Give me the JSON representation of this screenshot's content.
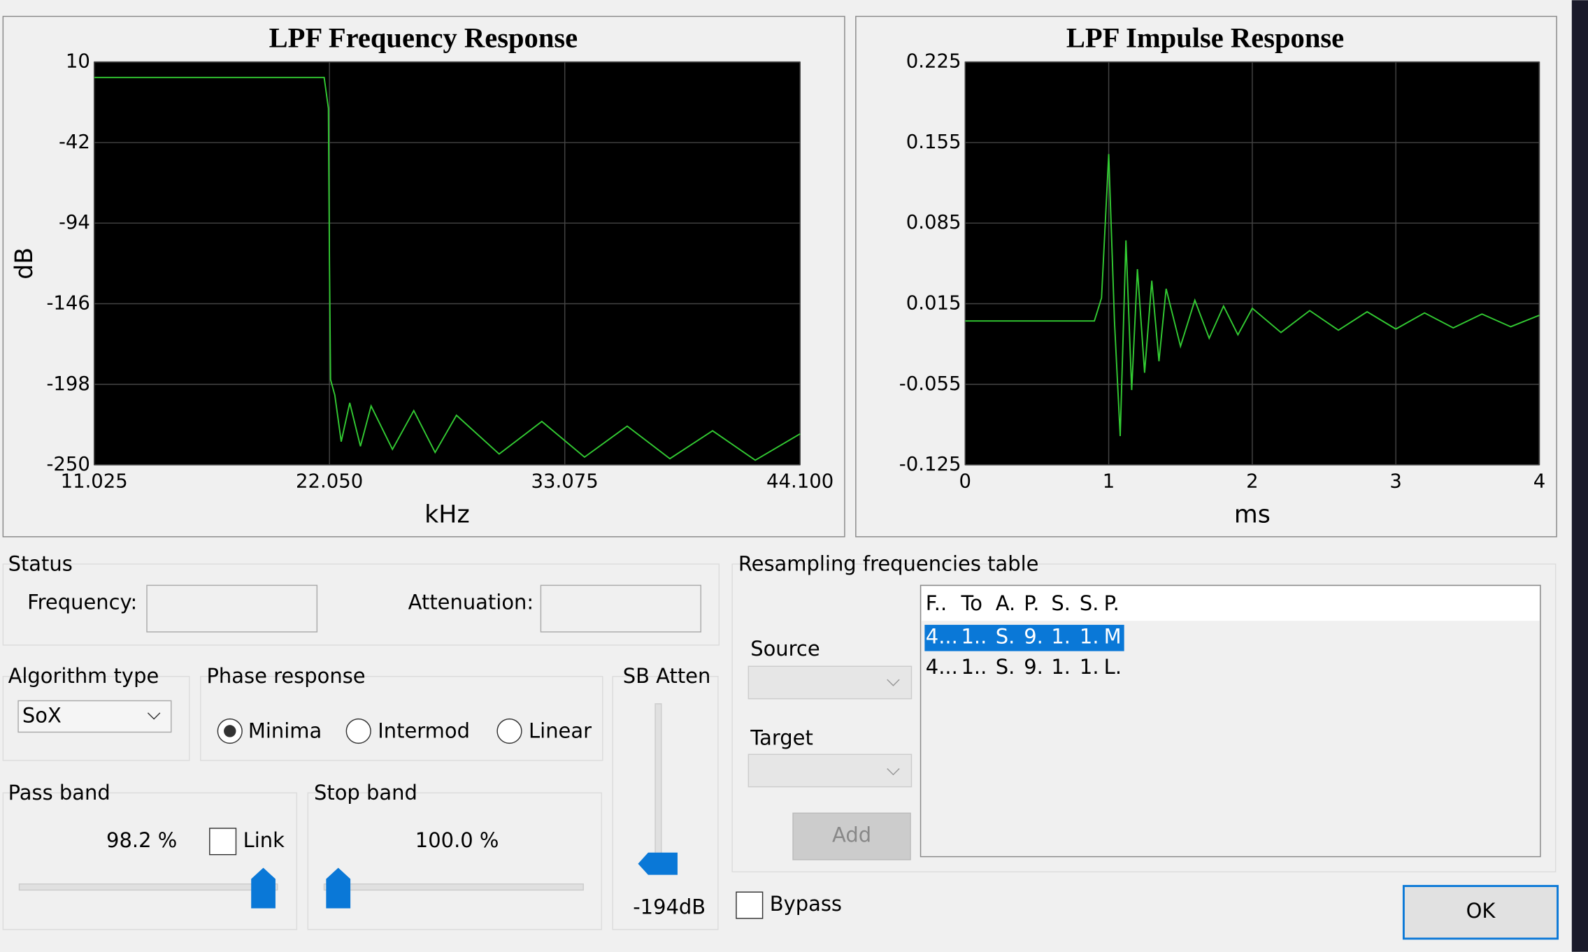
{
  "chart_data": [
    {
      "type": "line",
      "title": "LPF Frequency Response",
      "xlabel": "kHz",
      "ylabel": "dB",
      "color": "#33cc33",
      "grid": true,
      "x": [
        11.025,
        21.8,
        22.0,
        22.05,
        22.1,
        22.3,
        22.6,
        23.0,
        23.5,
        24.0,
        25.0,
        26.0,
        27.0,
        28.0,
        30.0,
        32.0,
        34.0,
        36.0,
        38.0,
        40.0,
        42.0,
        44.1
      ],
      "values": [
        0,
        0,
        -20,
        -120,
        -195,
        -205,
        -235,
        -210,
        -238,
        -212,
        -240,
        -215,
        -242,
        -218,
        -243,
        -222,
        -245,
        -225,
        -246,
        -228,
        -247,
        -230
      ],
      "xlim": [
        11.025,
        44.1
      ],
      "ylim": [
        -250,
        10
      ],
      "xticks": [
        11.025,
        {
          "value": 22.05,
          "label": "22.050"
        },
        33.075,
        {
          "value": 44.1,
          "label": "44.100"
        }
      ],
      "yticks": [
        10,
        -42,
        -94,
        -146,
        -198,
        -250
      ]
    },
    {
      "type": "line",
      "title": "LPF Impulse Response",
      "xlabel": "ms",
      "color": "#33cc33",
      "grid": true,
      "x": [
        0,
        0.9,
        0.95,
        1.0,
        1.04,
        1.08,
        1.12,
        1.16,
        1.2,
        1.25,
        1.3,
        1.35,
        1.4,
        1.5,
        1.6,
        1.7,
        1.8,
        1.9,
        2.0,
        2.2,
        2.4,
        2.6,
        2.8,
        3.0,
        3.2,
        3.4,
        3.6,
        3.8,
        4.0
      ],
      "values": [
        0,
        0,
        0.02,
        0.145,
        0.0,
        -0.1,
        0.07,
        -0.06,
        0.045,
        -0.045,
        0.035,
        -0.035,
        0.028,
        -0.022,
        0.018,
        -0.015,
        0.013,
        -0.012,
        0.011,
        -0.01,
        0.009,
        -0.008,
        0.008,
        -0.007,
        0.007,
        -0.006,
        0.006,
        -0.005,
        0.005
      ],
      "xlim": [
        0,
        4
      ],
      "ylim": [
        -0.125,
        0.225
      ],
      "xticks": [
        0,
        1,
        2,
        3,
        4
      ],
      "yticks": [
        0.225,
        0.155,
        0.085,
        0.015,
        -0.055,
        -0.125
      ]
    }
  ],
  "ui": {
    "status": "Status",
    "frequency": "Frequency:",
    "attenuation": "Attenuation:",
    "algorithm_type": "Algorithm type",
    "algorithm": "SoX",
    "phase_response": "Phase response",
    "phase_options": [
      "Minima",
      "Intermod",
      "Linear"
    ],
    "sb_atten": "SB Atten",
    "sb_value": "-194dB",
    "pass_band": "Pass band",
    "pass_value": "98.2 %",
    "link": "Link",
    "stop_band": "Stop band",
    "stop_value": "100.0 %",
    "table_group": "Resampling frequencies table",
    "source": "Source",
    "target": "Target",
    "add": "Add",
    "table": {
      "header": [
        "F..",
        "To",
        "A.",
        "P.",
        "S.",
        "S.",
        "P."
      ],
      "rows": [
        [
          "4...",
          "1..",
          "S.",
          "9.",
          "1.",
          "1.",
          "M"
        ],
        [
          "4...",
          "1..",
          "S.",
          "9.",
          "1.",
          "1.",
          "L."
        ]
      ]
    },
    "bypass": "Bypass",
    "ok": "OK"
  }
}
